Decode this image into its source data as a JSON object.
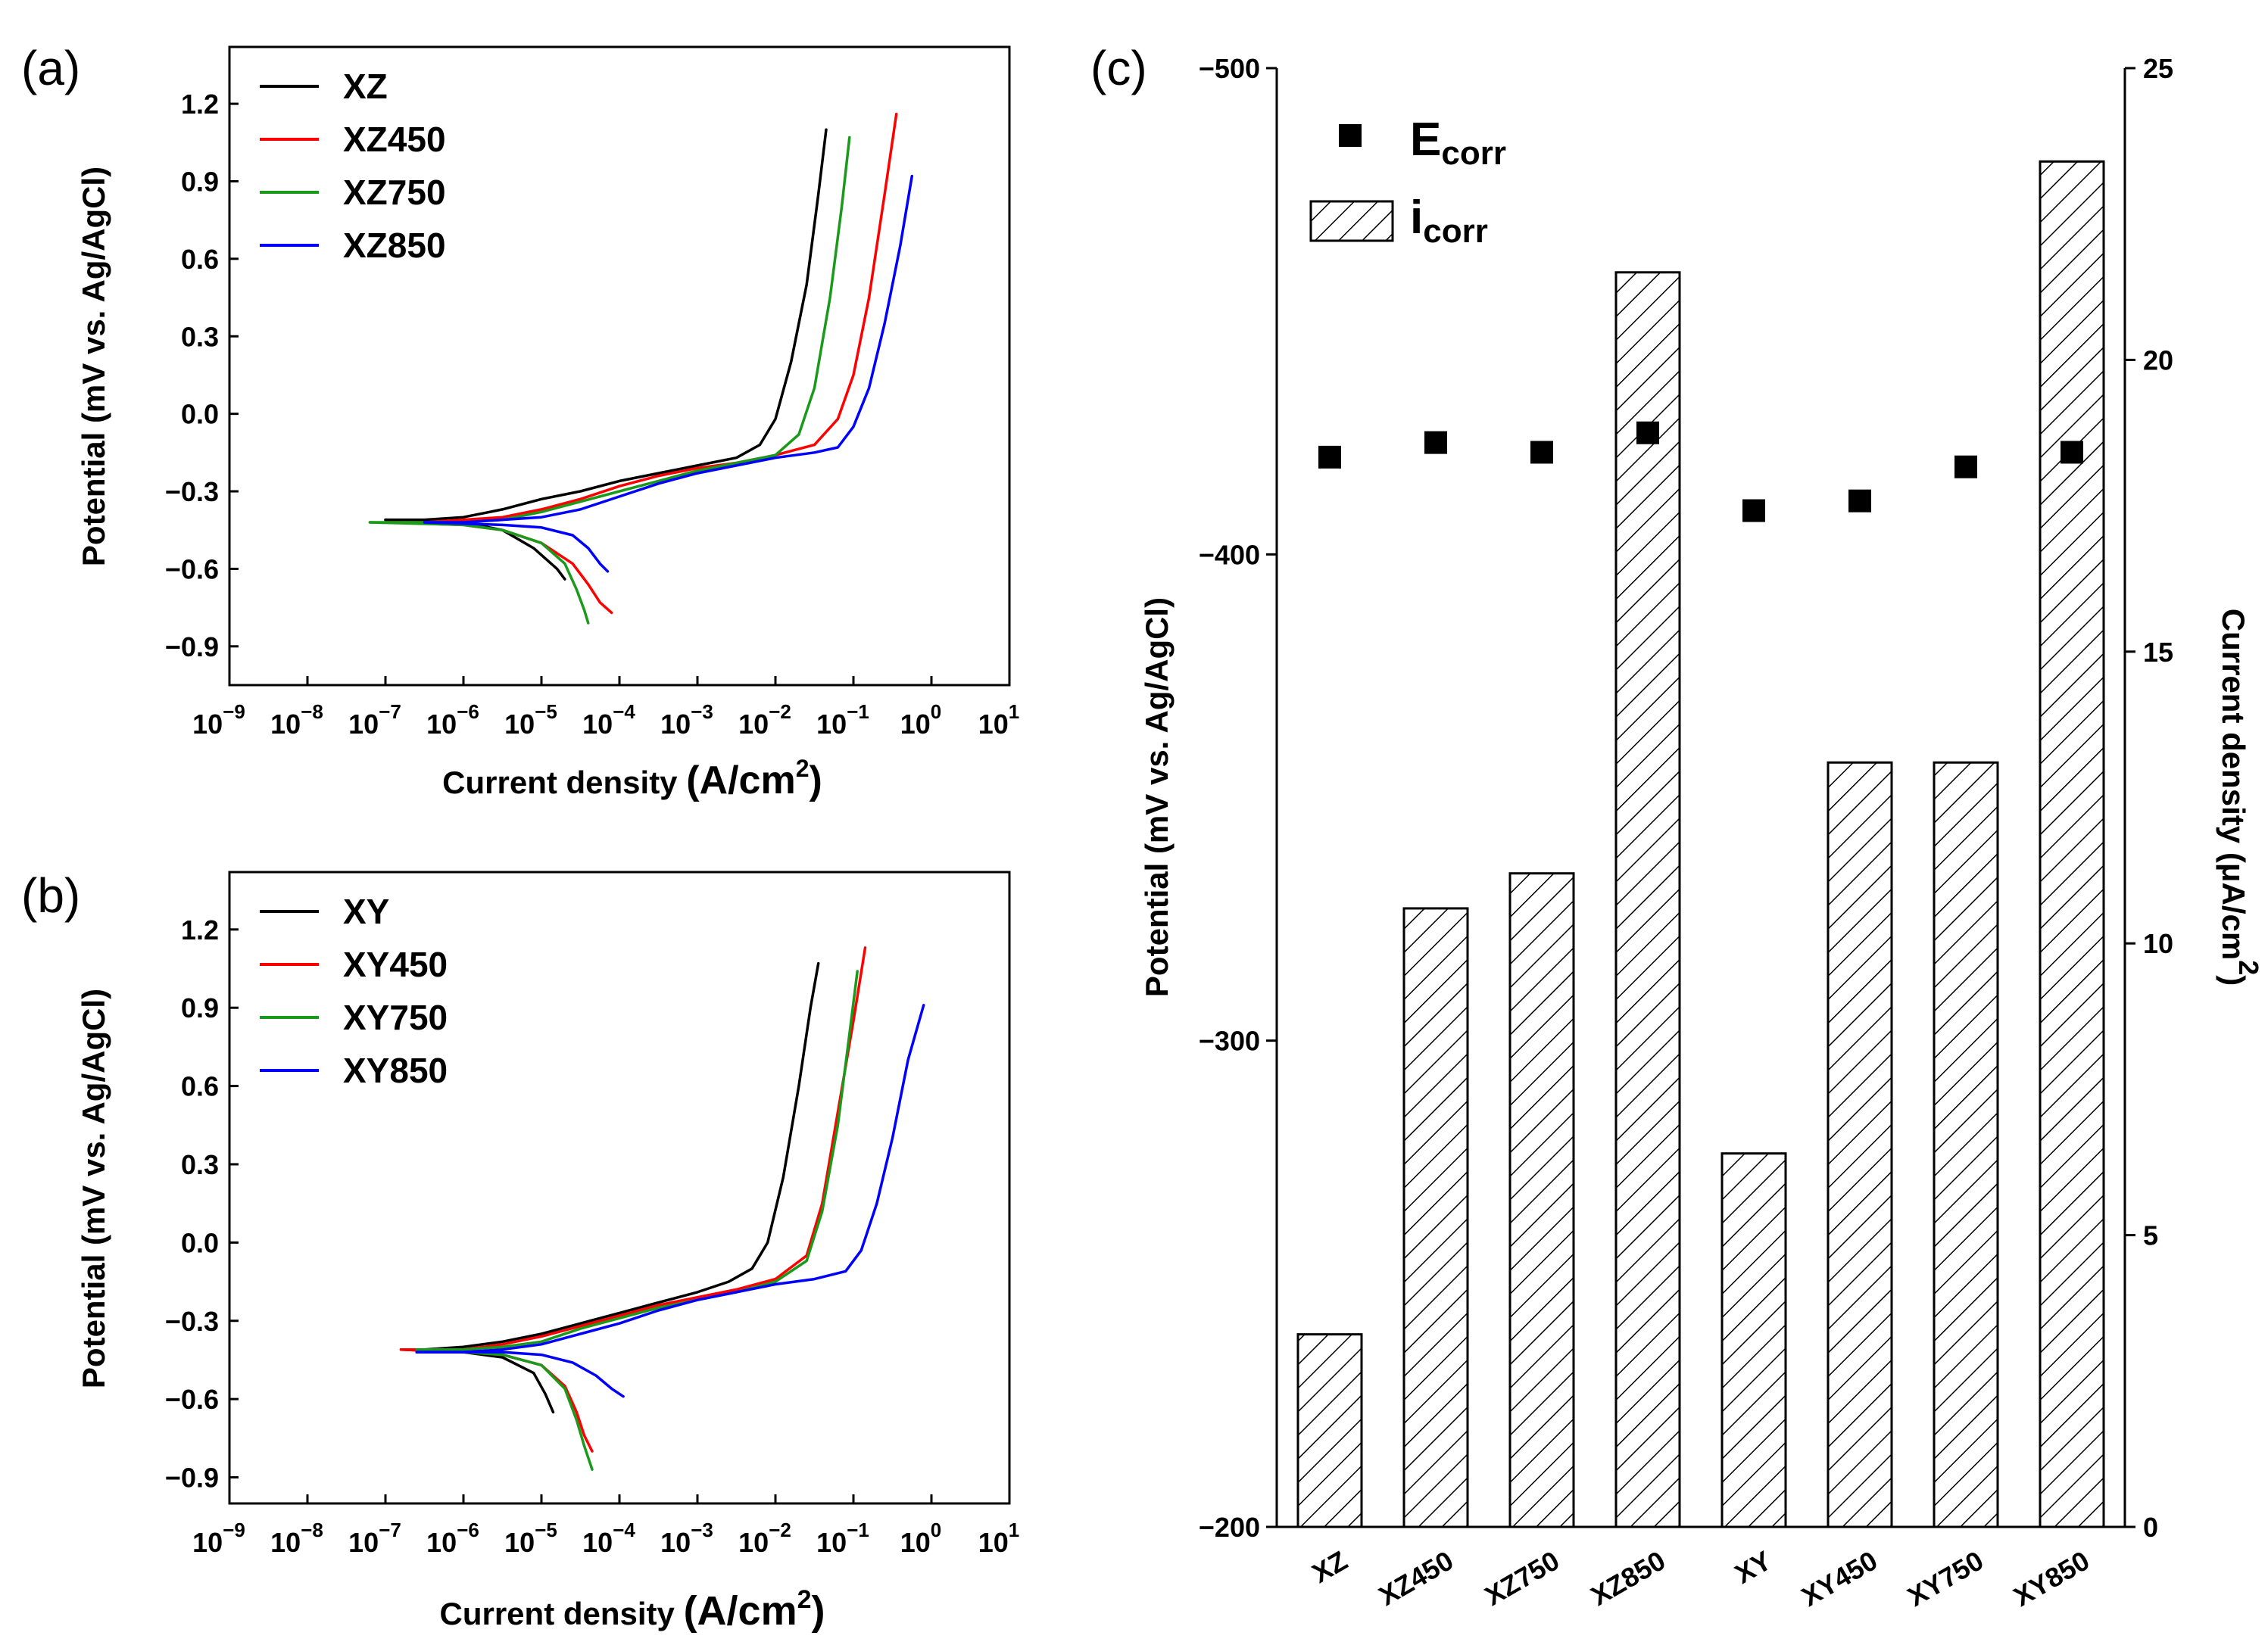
{
  "chart_data": [
    {
      "panel": "(a)",
      "type": "line",
      "xlabel": "Current density (A/cm2)",
      "ylabel": "Potential (mV vs. Ag/AgCl)",
      "x_scale": "log",
      "xlim_exp": [
        -9,
        1
      ],
      "ylim": [
        -1.05,
        1.42
      ],
      "yticks": [
        "1.2",
        "0.9",
        "0.6",
        "0.3",
        "0.0",
        "−0.3",
        "−0.6",
        "−0.9"
      ],
      "ytick_values": [
        1.2,
        0.9,
        0.6,
        0.3,
        0.0,
        -0.3,
        -0.6,
        -0.9
      ],
      "xtick_exponents": [
        "-9",
        "-8",
        "-7",
        "-6",
        "-5",
        "-4",
        "-3",
        "-2",
        "-1",
        "0",
        "1"
      ],
      "series": [
        {
          "name": "XZ",
          "color": "#000000",
          "anodic": [
            [
              -7,
              -0.41
            ],
            [
              -6.5,
              -0.41
            ],
            [
              -6,
              -0.4
            ],
            [
              -5.5,
              -0.37
            ],
            [
              -5,
              -0.33
            ],
            [
              -4.5,
              -0.3
            ],
            [
              -4,
              -0.26
            ],
            [
              -3.5,
              -0.23
            ],
            [
              -3,
              -0.2
            ],
            [
              -2.5,
              -0.17
            ],
            [
              -2.2,
              -0.12
            ],
            [
              -2,
              -0.02
            ],
            [
              -1.8,
              0.2
            ],
            [
              -1.6,
              0.5
            ],
            [
              -1.45,
              0.85
            ],
            [
              -1.35,
              1.1
            ]
          ],
          "cathodic": [
            [
              -7,
              -0.41
            ],
            [
              -6,
              -0.42
            ],
            [
              -5.5,
              -0.45
            ],
            [
              -5.1,
              -0.52
            ],
            [
              -4.8,
              -0.6
            ],
            [
              -4.7,
              -0.64
            ]
          ]
        },
        {
          "name": "XZ450",
          "color": "#ff0000",
          "anodic": [
            [
              -7,
              -0.42
            ],
            [
              -6.5,
              -0.42
            ],
            [
              -6,
              -0.41
            ],
            [
              -5.5,
              -0.4
            ],
            [
              -5,
              -0.37
            ],
            [
              -4.5,
              -0.33
            ],
            [
              -4,
              -0.28
            ],
            [
              -3.5,
              -0.24
            ],
            [
              -3,
              -0.21
            ],
            [
              -2.5,
              -0.19
            ],
            [
              -2,
              -0.16
            ],
            [
              -1.5,
              -0.12
            ],
            [
              -1.2,
              -0.02
            ],
            [
              -1,
              0.15
            ],
            [
              -0.8,
              0.45
            ],
            [
              -0.6,
              0.85
            ],
            [
              -0.45,
              1.16
            ]
          ],
          "cathodic": [
            [
              -7,
              -0.42
            ],
            [
              -6,
              -0.43
            ],
            [
              -5.5,
              -0.45
            ],
            [
              -5,
              -0.5
            ],
            [
              -4.6,
              -0.58
            ],
            [
              -4.4,
              -0.66
            ],
            [
              -4.25,
              -0.73
            ],
            [
              -4.1,
              -0.77
            ]
          ]
        },
        {
          "name": "XZ750",
          "color": "#1a9a1a",
          "anodic": [
            [
              -7.2,
              -0.42
            ],
            [
              -6.5,
              -0.42
            ],
            [
              -6,
              -0.42
            ],
            [
              -5.5,
              -0.41
            ],
            [
              -5,
              -0.38
            ],
            [
              -4.5,
              -0.34
            ],
            [
              -4,
              -0.3
            ],
            [
              -3.5,
              -0.26
            ],
            [
              -3,
              -0.22
            ],
            [
              -2.5,
              -0.19
            ],
            [
              -2,
              -0.16
            ],
            [
              -1.7,
              -0.08
            ],
            [
              -1.5,
              0.1
            ],
            [
              -1.3,
              0.45
            ],
            [
              -1.15,
              0.8
            ],
            [
              -1.05,
              1.07
            ]
          ],
          "cathodic": [
            [
              -7.2,
              -0.42
            ],
            [
              -6,
              -0.43
            ],
            [
              -5.5,
              -0.45
            ],
            [
              -5,
              -0.5
            ],
            [
              -4.7,
              -0.58
            ],
            [
              -4.55,
              -0.68
            ],
            [
              -4.45,
              -0.76
            ],
            [
              -4.4,
              -0.81
            ]
          ]
        },
        {
          "name": "XZ850",
          "color": "#0000ff",
          "anodic": [
            [
              -6.5,
              -0.42
            ],
            [
              -6,
              -0.42
            ],
            [
              -5.5,
              -0.41
            ],
            [
              -5,
              -0.4
            ],
            [
              -4.5,
              -0.37
            ],
            [
              -4,
              -0.32
            ],
            [
              -3.5,
              -0.27
            ],
            [
              -3,
              -0.23
            ],
            [
              -2.5,
              -0.2
            ],
            [
              -2,
              -0.17
            ],
            [
              -1.5,
              -0.15
            ],
            [
              -1.2,
              -0.13
            ],
            [
              -1,
              -0.05
            ],
            [
              -0.8,
              0.1
            ],
            [
              -0.6,
              0.35
            ],
            [
              -0.4,
              0.65
            ],
            [
              -0.25,
              0.92
            ]
          ],
          "cathodic": [
            [
              -6.5,
              -0.42
            ],
            [
              -5.5,
              -0.43
            ],
            [
              -5,
              -0.44
            ],
            [
              -4.6,
              -0.47
            ],
            [
              -4.4,
              -0.52
            ],
            [
              -4.25,
              -0.58
            ],
            [
              -4.15,
              -0.61
            ]
          ]
        }
      ]
    },
    {
      "panel": "(b)",
      "type": "line",
      "xlabel": "Current density (A/cm2)",
      "ylabel": "Potential (mV vs. Ag/AgCl)",
      "x_scale": "log",
      "xlim_exp": [
        -9,
        1
      ],
      "ylim": [
        -1.0,
        1.42
      ],
      "yticks": [
        "1.2",
        "0.9",
        "0.6",
        "0.3",
        "0.0",
        "−0.3",
        "−0.6",
        "−0.9"
      ],
      "ytick_values": [
        1.2,
        0.9,
        0.6,
        0.3,
        0.0,
        -0.3,
        -0.6,
        -0.9
      ],
      "xtick_exponents": [
        "-9",
        "-8",
        "-7",
        "-6",
        "-5",
        "-4",
        "-3",
        "-2",
        "-1",
        "0",
        "1"
      ],
      "series": [
        {
          "name": "XY",
          "color": "#000000",
          "anodic": [
            [
              -6.8,
              -0.41
            ],
            [
              -6.5,
              -0.41
            ],
            [
              -6,
              -0.4
            ],
            [
              -5.5,
              -0.38
            ],
            [
              -5,
              -0.35
            ],
            [
              -4.5,
              -0.31
            ],
            [
              -4,
              -0.27
            ],
            [
              -3.5,
              -0.23
            ],
            [
              -3,
              -0.19
            ],
            [
              -2.6,
              -0.15
            ],
            [
              -2.3,
              -0.1
            ],
            [
              -2.1,
              0.0
            ],
            [
              -1.9,
              0.25
            ],
            [
              -1.7,
              0.6
            ],
            [
              -1.55,
              0.9
            ],
            [
              -1.45,
              1.07
            ]
          ],
          "cathodic": [
            [
              -6.8,
              -0.41
            ],
            [
              -6,
              -0.42
            ],
            [
              -5.5,
              -0.44
            ],
            [
              -5.1,
              -0.5
            ],
            [
              -4.95,
              -0.58
            ],
            [
              -4.85,
              -0.65
            ]
          ]
        },
        {
          "name": "XY450",
          "color": "#ff0000",
          "anodic": [
            [
              -6.8,
              -0.41
            ],
            [
              -6.5,
              -0.41
            ],
            [
              -6,
              -0.41
            ],
            [
              -5.5,
              -0.39
            ],
            [
              -5,
              -0.36
            ],
            [
              -4.5,
              -0.32
            ],
            [
              -4,
              -0.28
            ],
            [
              -3.5,
              -0.24
            ],
            [
              -3,
              -0.21
            ],
            [
              -2.5,
              -0.18
            ],
            [
              -2,
              -0.14
            ],
            [
              -1.6,
              -0.05
            ],
            [
              -1.4,
              0.15
            ],
            [
              -1.2,
              0.5
            ],
            [
              -1.0,
              0.85
            ],
            [
              -0.85,
              1.13
            ]
          ],
          "cathodic": [
            [
              -6.8,
              -0.41
            ],
            [
              -6,
              -0.42
            ],
            [
              -5.5,
              -0.43
            ],
            [
              -5,
              -0.47
            ],
            [
              -4.7,
              -0.55
            ],
            [
              -4.55,
              -0.65
            ],
            [
              -4.45,
              -0.74
            ],
            [
              -4.35,
              -0.8
            ]
          ]
        },
        {
          "name": "XY750",
          "color": "#1a9a1a",
          "anodic": [
            [
              -6.6,
              -0.41
            ],
            [
              -6,
              -0.41
            ],
            [
              -5.5,
              -0.4
            ],
            [
              -5,
              -0.38
            ],
            [
              -4.5,
              -0.33
            ],
            [
              -4,
              -0.29
            ],
            [
              -3.5,
              -0.25
            ],
            [
              -3,
              -0.22
            ],
            [
              -2.5,
              -0.19
            ],
            [
              -2,
              -0.15
            ],
            [
              -1.6,
              -0.07
            ],
            [
              -1.4,
              0.12
            ],
            [
              -1.2,
              0.45
            ],
            [
              -1.05,
              0.8
            ],
            [
              -0.95,
              1.04
            ]
          ],
          "cathodic": [
            [
              -6.6,
              -0.41
            ],
            [
              -6,
              -0.42
            ],
            [
              -5.5,
              -0.43
            ],
            [
              -5,
              -0.47
            ],
            [
              -4.7,
              -0.56
            ],
            [
              -4.55,
              -0.68
            ],
            [
              -4.45,
              -0.78
            ],
            [
              -4.35,
              -0.87
            ]
          ]
        },
        {
          "name": "XY850",
          "color": "#0000ff",
          "anodic": [
            [
              -6.6,
              -0.42
            ],
            [
              -6,
              -0.42
            ],
            [
              -5.5,
              -0.41
            ],
            [
              -5,
              -0.39
            ],
            [
              -4.5,
              -0.35
            ],
            [
              -4,
              -0.31
            ],
            [
              -3.5,
              -0.26
            ],
            [
              -3,
              -0.22
            ],
            [
              -2.5,
              -0.19
            ],
            [
              -2,
              -0.16
            ],
            [
              -1.5,
              -0.14
            ],
            [
              -1.1,
              -0.11
            ],
            [
              -0.9,
              -0.03
            ],
            [
              -0.7,
              0.15
            ],
            [
              -0.5,
              0.4
            ],
            [
              -0.3,
              0.7
            ],
            [
              -0.1,
              0.91
            ]
          ],
          "cathodic": [
            [
              -6.6,
              -0.42
            ],
            [
              -5.5,
              -0.42
            ],
            [
              -5,
              -0.43
            ],
            [
              -4.6,
              -0.46
            ],
            [
              -4.3,
              -0.51
            ],
            [
              -4.1,
              -0.56
            ],
            [
              -3.95,
              -0.59
            ]
          ]
        }
      ]
    },
    {
      "panel": "(c)",
      "type": "bar",
      "categories": [
        "XZ",
        "XZ450",
        "XZ750",
        "XZ850",
        "XY",
        "XY450",
        "XY750",
        "XY850"
      ],
      "ylabel": "Potential (mV vs. Ag/AgCl)",
      "ylabel_right": "Current density (μA/cm2)",
      "ylim_left": [
        -200,
        -500
      ],
      "yticks_left": [
        "−500",
        "−400",
        "−300",
        "−200"
      ],
      "ytick_values_left": [
        -500,
        -400,
        -300,
        -200
      ],
      "ylim_right": [
        0,
        25
      ],
      "yticks_right": [
        "25",
        "20",
        "15",
        "10",
        "5",
        "0"
      ],
      "ytick_values_right": [
        25,
        20,
        15,
        10,
        5,
        0
      ],
      "series": [
        {
          "name": "Ecorr",
          "kind": "scatter",
          "axis": "left",
          "values": [
            -420,
            -423,
            -421,
            -425,
            -409,
            -411,
            -418,
            -421
          ]
        },
        {
          "name": "icorr",
          "kind": "bar",
          "axis": "right",
          "values": [
            3.3,
            10.6,
            11.2,
            21.5,
            6.4,
            13.1,
            13.1,
            23.4
          ]
        }
      ],
      "legend": {
        "ecorr_main": "E",
        "ecorr_sub": "corr",
        "icorr_main": "i",
        "icorr_sub": "corr"
      }
    }
  ],
  "panel_labels": {
    "a": "(a)",
    "b": "(b)",
    "c": "(c)"
  },
  "axis_titles": {
    "a_x_main": "Current density ",
    "a_x_unit": "(A/cm",
    "a_x_exp": "2",
    "a_x_close": ")",
    "b_x_main": "Current density ",
    "b_x_unit": "(A/cm",
    "b_x_exp": "2",
    "b_x_close": ")",
    "a_y": "Potential (mV vs. Ag/AgCl)",
    "b_y": "Potential (mV vs. Ag/AgCl)",
    "c_y": "Potential (mV vs. Ag/AgCl)",
    "c_y2_main": "Current density (μA/cm",
    "c_y2_exp": "2",
    "c_y2_close": ")"
  },
  "colors": {
    "XZ": "#000000",
    "XZ450": "#ff0000",
    "XZ750": "#1a9a1a",
    "XZ850": "#0000ff"
  }
}
